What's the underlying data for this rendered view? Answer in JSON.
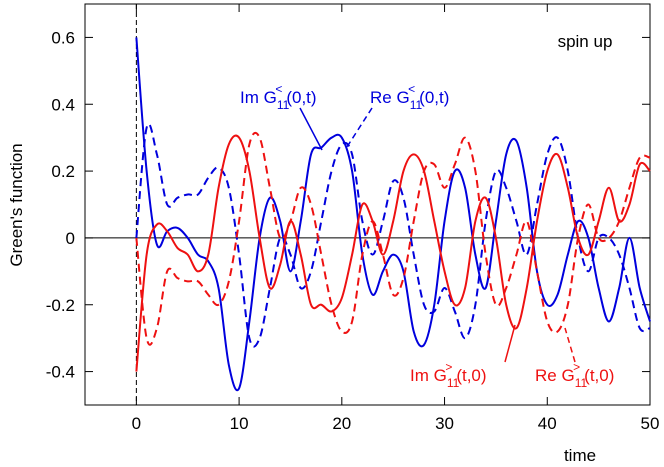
{
  "chart_data": {
    "type": "line",
    "annotation": "spin up",
    "xlabel": "time",
    "ylabel": "Green's function",
    "xlim": [
      -5,
      50
    ],
    "ylim": [
      -0.5,
      0.7
    ],
    "xticks": [
      0,
      10,
      20,
      30,
      40,
      50
    ],
    "yticks": [
      -0.4,
      -0.2,
      0,
      0.2,
      0.4,
      0.6
    ],
    "x": [
      0,
      1,
      2,
      3,
      4,
      5,
      6,
      7,
      8,
      9,
      10,
      11,
      12,
      13,
      14,
      15,
      16,
      17,
      18,
      19,
      20,
      21,
      22,
      23,
      24,
      25,
      26,
      27,
      28,
      29,
      30,
      31,
      32,
      33,
      34,
      35,
      36,
      37,
      38,
      39,
      40,
      41,
      42,
      43,
      44,
      45,
      46,
      47,
      48,
      49,
      50
    ],
    "series": [
      {
        "label": {
          "part": "Im G",
          "sub": "11",
          "sup": "<",
          "args": "(0,t)"
        },
        "color": "#0000dd",
        "dash": false,
        "values": [
          0.6,
          0.2,
          -0.02,
          0.02,
          0.03,
          0.0,
          -0.05,
          -0.07,
          -0.15,
          -0.38,
          -0.45,
          -0.25,
          0.0,
          0.12,
          0.05,
          -0.1,
          0.05,
          0.25,
          0.27,
          0.3,
          0.3,
          0.2,
          -0.05,
          -0.17,
          -0.1,
          -0.05,
          -0.1,
          -0.28,
          -0.32,
          -0.2,
          0.05,
          0.2,
          0.15,
          -0.05,
          -0.15,
          0.05,
          0.25,
          0.29,
          0.15,
          -0.1,
          -0.2,
          -0.17,
          -0.05,
          0.05,
          0.0,
          -0.15,
          -0.25,
          -0.15,
          0.0,
          -0.15,
          -0.25
        ]
      },
      {
        "label": {
          "part": "Re G",
          "sub": "11",
          "sup": "<",
          "args": "(0,t)"
        },
        "color": "#0000dd",
        "dash": true,
        "values": [
          0.0,
          0.33,
          0.25,
          0.1,
          0.12,
          0.13,
          0.13,
          0.18,
          0.21,
          0.15,
          -0.05,
          -0.3,
          -0.3,
          -0.15,
          0.0,
          -0.05,
          -0.15,
          -0.1,
          0.05,
          0.2,
          0.28,
          0.25,
          0.05,
          -0.05,
          0.05,
          0.17,
          0.12,
          -0.05,
          -0.2,
          -0.22,
          -0.15,
          -0.22,
          -0.3,
          -0.2,
          0.05,
          0.2,
          0.15,
          0.05,
          -0.05,
          0.1,
          0.25,
          0.3,
          0.2,
          0.0,
          -0.1,
          0.0,
          0.0,
          -0.05,
          -0.15,
          -0.27,
          -0.27
        ]
      },
      {
        "label": {
          "part": "Im G",
          "sub": "11",
          "sup": ">",
          "args": "(t,0)"
        },
        "color": "#ee1111",
        "dash": false,
        "values": [
          -0.4,
          -0.05,
          0.04,
          0.02,
          -0.03,
          -0.05,
          -0.1,
          -0.05,
          0.15,
          0.28,
          0.3,
          0.2,
          0.0,
          -0.15,
          -0.08,
          0.05,
          -0.05,
          -0.2,
          -0.2,
          -0.22,
          -0.18,
          -0.05,
          0.1,
          0.05,
          -0.05,
          0.05,
          0.2,
          0.25,
          0.2,
          0.05,
          -0.1,
          -0.2,
          -0.15,
          0.05,
          0.12,
          0.0,
          -0.2,
          -0.27,
          -0.15,
          0.05,
          0.2,
          0.25,
          0.15,
          0.0,
          -0.05,
          0.05,
          0.15,
          0.05,
          0.1,
          0.22,
          0.2
        ]
      },
      {
        "label": {
          "part": "Re G",
          "sub": "11",
          "sup": ">",
          "args": "(t,0)"
        },
        "color": "#ee1111",
        "dash": true,
        "values": [
          0.0,
          -0.3,
          -0.27,
          -0.1,
          -0.12,
          -0.13,
          -0.13,
          -0.17,
          -0.2,
          -0.13,
          0.05,
          0.28,
          0.3,
          0.15,
          0.0,
          0.05,
          0.15,
          0.1,
          -0.05,
          -0.2,
          -0.28,
          -0.25,
          -0.05,
          0.05,
          -0.05,
          -0.17,
          -0.12,
          0.05,
          0.2,
          0.22,
          0.15,
          0.22,
          0.3,
          0.2,
          -0.05,
          -0.2,
          -0.15,
          -0.05,
          0.05,
          -0.1,
          -0.25,
          -0.28,
          -0.2,
          0.0,
          0.1,
          0.0,
          0.0,
          0.05,
          0.15,
          0.24,
          0.24
        ]
      }
    ]
  }
}
